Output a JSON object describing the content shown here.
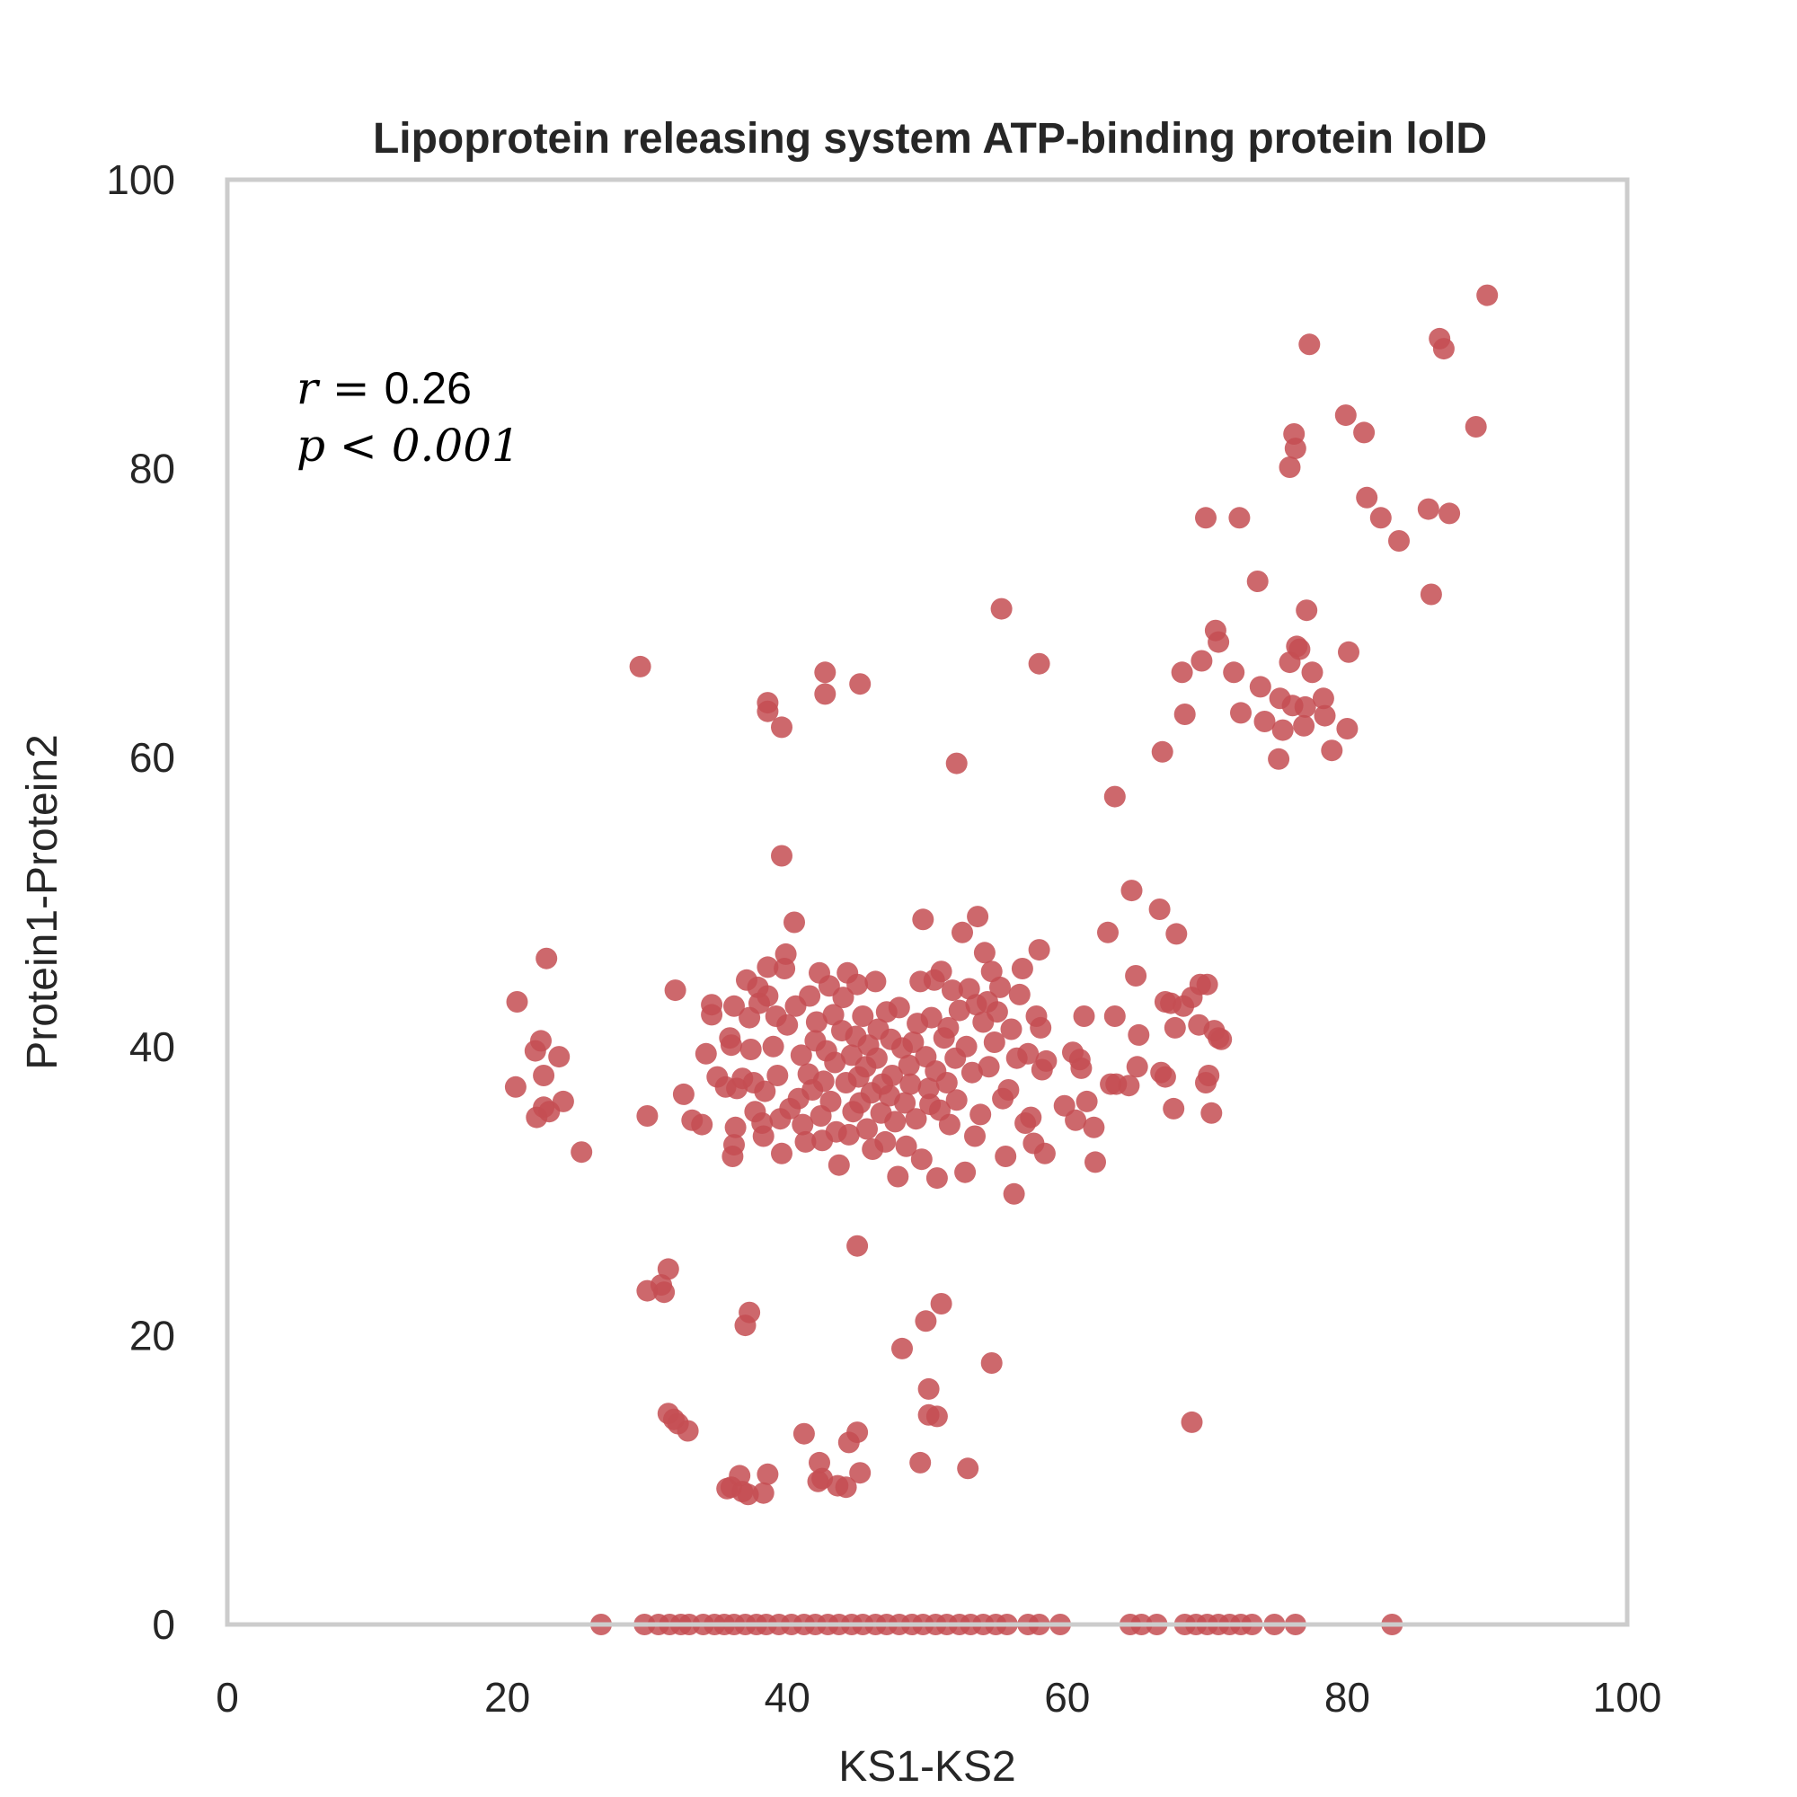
{
  "chart_data": {
    "type": "scatter",
    "title": "Lipoprotein releasing system ATP-binding protein lolD",
    "xlabel": "KS1-KS2",
    "ylabel": "Protein1-Protein2",
    "xlim": [
      0,
      100
    ],
    "ylim": [
      0,
      100
    ],
    "xticks": [
      "0",
      "20",
      "40",
      "60",
      "80",
      "100"
    ],
    "yticks": [
      "0",
      "20",
      "40",
      "60",
      "80",
      "100"
    ],
    "grid": false,
    "point_color": "#c44e52",
    "annotation": {
      "r_symbol": "r",
      "r_op": " = ",
      "r_value": "0.26",
      "p_symbol": "p",
      "p_op": " < ",
      "p_value": "0.001"
    },
    "points": [
      [
        20.7,
        43.1
      ],
      [
        20.6,
        37.2
      ],
      [
        22.1,
        35.1
      ],
      [
        22.0,
        39.7
      ],
      [
        22.4,
        40.4
      ],
      [
        22.6,
        35.8
      ],
      [
        22.6,
        38.0
      ],
      [
        23.0,
        35.5
      ],
      [
        23.7,
        39.3
      ],
      [
        24.0,
        36.2
      ],
      [
        22.8,
        46.1
      ],
      [
        25.3,
        32.7
      ],
      [
        29.5,
        66.3
      ],
      [
        30.0,
        35.2
      ],
      [
        32.0,
        43.9
      ],
      [
        32.6,
        36.7
      ],
      [
        33.2,
        34.9
      ],
      [
        33.9,
        34.6
      ],
      [
        34.2,
        39.5
      ],
      [
        34.6,
        42.9
      ],
      [
        34.6,
        42.2
      ],
      [
        35.0,
        37.9
      ],
      [
        35.6,
        37.2
      ],
      [
        35.9,
        40.6
      ],
      [
        36.0,
        40.1
      ],
      [
        36.2,
        42.8
      ],
      [
        36.4,
        37.1
      ],
      [
        36.3,
        34.4
      ],
      [
        36.2,
        33.2
      ],
      [
        36.1,
        32.4
      ],
      [
        36.8,
        37.8
      ],
      [
        37.1,
        44.6
      ],
      [
        37.3,
        42.0
      ],
      [
        37.4,
        39.8
      ],
      [
        37.6,
        37.5
      ],
      [
        37.7,
        35.5
      ],
      [
        37.9,
        44.1
      ],
      [
        38.0,
        43.0
      ],
      [
        38.2,
        34.7
      ],
      [
        38.3,
        33.8
      ],
      [
        38.4,
        36.9
      ],
      [
        38.6,
        45.5
      ],
      [
        38.6,
        43.5
      ],
      [
        39.0,
        40.0
      ],
      [
        39.2,
        42.1
      ],
      [
        39.3,
        38.0
      ],
      [
        39.5,
        35.0
      ],
      [
        39.6,
        32.6
      ],
      [
        39.8,
        45.4
      ],
      [
        39.9,
        46.4
      ],
      [
        40.0,
        41.5
      ],
      [
        40.2,
        35.7
      ],
      [
        40.5,
        48.6
      ],
      [
        40.6,
        42.8
      ],
      [
        40.8,
        36.4
      ],
      [
        41.0,
        39.4
      ],
      [
        41.1,
        34.6
      ],
      [
        41.3,
        33.4
      ],
      [
        41.5,
        38.1
      ],
      [
        41.6,
        43.5
      ],
      [
        41.8,
        37.0
      ],
      [
        42.0,
        40.4
      ],
      [
        42.1,
        41.7
      ],
      [
        42.3,
        45.1
      ],
      [
        42.4,
        35.2
      ],
      [
        42.5,
        33.5
      ],
      [
        42.6,
        37.6
      ],
      [
        42.8,
        39.7
      ],
      [
        43.0,
        44.2
      ],
      [
        43.1,
        36.2
      ],
      [
        43.3,
        42.2
      ],
      [
        43.4,
        38.9
      ],
      [
        43.5,
        34.1
      ],
      [
        43.7,
        31.8
      ],
      [
        43.9,
        41.1
      ],
      [
        44.0,
        43.4
      ],
      [
        44.2,
        37.5
      ],
      [
        44.3,
        45.1
      ],
      [
        44.4,
        33.9
      ],
      [
        44.6,
        39.4
      ],
      [
        44.7,
        35.5
      ],
      [
        44.9,
        40.7
      ],
      [
        45.0,
        44.3
      ],
      [
        45.1,
        37.9
      ],
      [
        45.2,
        36.1
      ],
      [
        45.4,
        42.1
      ],
      [
        45.6,
        38.6
      ],
      [
        45.7,
        34.3
      ],
      [
        45.8,
        40.1
      ],
      [
        46.0,
        36.8
      ],
      [
        46.1,
        32.9
      ],
      [
        46.3,
        44.5
      ],
      [
        46.4,
        39.2
      ],
      [
        46.5,
        41.2
      ],
      [
        46.7,
        35.4
      ],
      [
        46.8,
        37.4
      ],
      [
        47.0,
        33.4
      ],
      [
        47.1,
        42.4
      ],
      [
        47.3,
        36.6
      ],
      [
        47.4,
        40.5
      ],
      [
        47.5,
        38.0
      ],
      [
        47.7,
        34.8
      ],
      [
        47.9,
        31.0
      ],
      [
        48.0,
        42.7
      ],
      [
        48.2,
        39.9
      ],
      [
        48.4,
        36.1
      ],
      [
        48.5,
        33.1
      ],
      [
        48.7,
        38.7
      ],
      [
        48.8,
        37.4
      ],
      [
        49.0,
        40.3
      ],
      [
        49.2,
        35.0
      ],
      [
        49.3,
        41.6
      ],
      [
        49.5,
        44.5
      ],
      [
        49.6,
        32.2
      ],
      [
        49.7,
        48.8
      ],
      [
        49.9,
        39.3
      ],
      [
        50.1,
        37.1
      ],
      [
        50.2,
        36.0
      ],
      [
        50.3,
        42.0
      ],
      [
        50.5,
        44.6
      ],
      [
        50.6,
        38.3
      ],
      [
        50.7,
        30.9
      ],
      [
        50.9,
        35.6
      ],
      [
        51.0,
        45.2
      ],
      [
        51.2,
        40.6
      ],
      [
        51.4,
        37.5
      ],
      [
        51.5,
        41.3
      ],
      [
        51.6,
        34.6
      ],
      [
        51.8,
        43.9
      ],
      [
        52.0,
        39.2
      ],
      [
        52.1,
        36.3
      ],
      [
        52.3,
        42.5
      ],
      [
        52.5,
        47.9
      ],
      [
        52.7,
        31.3
      ],
      [
        52.8,
        40.0
      ],
      [
        53.0,
        44.0
      ],
      [
        53.2,
        38.2
      ],
      [
        53.4,
        33.8
      ],
      [
        53.5,
        42.9
      ],
      [
        53.6,
        49.0
      ],
      [
        53.8,
        35.3
      ],
      [
        54.0,
        41.7
      ],
      [
        54.1,
        46.5
      ],
      [
        54.3,
        43.1
      ],
      [
        54.4,
        38.6
      ],
      [
        54.6,
        45.2
      ],
      [
        54.8,
        40.3
      ],
      [
        55.0,
        42.4
      ],
      [
        55.2,
        44.1
      ],
      [
        55.4,
        36.4
      ],
      [
        55.6,
        32.4
      ],
      [
        55.8,
        37.0
      ],
      [
        56.0,
        41.2
      ],
      [
        56.2,
        29.8
      ],
      [
        56.4,
        39.2
      ],
      [
        56.6,
        43.6
      ],
      [
        56.8,
        45.4
      ],
      [
        57.0,
        34.7
      ],
      [
        57.2,
        39.5
      ],
      [
        57.4,
        35.1
      ],
      [
        57.6,
        33.3
      ],
      [
        57.8,
        42.1
      ],
      [
        58.0,
        46.7
      ],
      [
        58.1,
        41.3
      ],
      [
        58.2,
        38.4
      ],
      [
        58.4,
        32.6
      ],
      [
        58.5,
        39.0
      ],
      [
        59.8,
        35.9
      ],
      [
        60.4,
        39.6
      ],
      [
        60.6,
        34.9
      ],
      [
        60.9,
        39.1
      ],
      [
        61.0,
        38.5
      ],
      [
        61.2,
        42.1
      ],
      [
        61.4,
        36.2
      ],
      [
        61.9,
        34.4
      ],
      [
        62.0,
        32.0
      ],
      [
        62.9,
        47.9
      ],
      [
        63.1,
        37.4
      ],
      [
        63.4,
        42.1
      ],
      [
        63.5,
        37.4
      ],
      [
        64.4,
        37.3
      ],
      [
        64.6,
        50.8
      ],
      [
        64.9,
        44.9
      ],
      [
        65.0,
        38.6
      ],
      [
        65.1,
        40.8
      ],
      [
        66.7,
        38.2
      ],
      [
        66.6,
        49.5
      ],
      [
        67.0,
        37.9
      ],
      [
        67.0,
        43.1
      ],
      [
        67.4,
        43.0
      ],
      [
        67.6,
        35.7
      ],
      [
        67.7,
        41.3
      ],
      [
        67.8,
        47.8
      ],
      [
        68.3,
        42.8
      ],
      [
        68.9,
        43.4
      ],
      [
        69.4,
        41.5
      ],
      [
        69.5,
        44.3
      ],
      [
        69.9,
        37.5
      ],
      [
        70.0,
        44.3
      ],
      [
        70.1,
        38.0
      ],
      [
        70.3,
        35.4
      ],
      [
        70.5,
        41.1
      ],
      [
        70.8,
        40.6
      ],
      [
        71.0,
        40.5
      ],
      [
        39.6,
        53.2
      ],
      [
        38.6,
        63.8
      ],
      [
        38.6,
        63.2
      ],
      [
        39.6,
        62.1
      ],
      [
        42.7,
        65.9
      ],
      [
        42.7,
        64.4
      ],
      [
        45.2,
        65.1
      ],
      [
        52.1,
        59.6
      ],
      [
        55.3,
        70.3
      ],
      [
        58.0,
        66.5
      ],
      [
        63.4,
        57.3
      ],
      [
        30.0,
        23.1
      ],
      [
        31.0,
        23.5
      ],
      [
        31.2,
        23.0
      ],
      [
        31.5,
        24.6
      ],
      [
        37.0,
        20.7
      ],
      [
        37.3,
        21.6
      ],
      [
        45.0,
        26.2
      ],
      [
        48.2,
        19.1
      ],
      [
        49.9,
        21.0
      ],
      [
        51.0,
        22.2
      ],
      [
        54.6,
        18.1
      ],
      [
        31.5,
        14.6
      ],
      [
        31.9,
        14.2
      ],
      [
        32.2,
        13.9
      ],
      [
        32.9,
        13.4
      ],
      [
        35.7,
        9.4
      ],
      [
        36.0,
        9.5
      ],
      [
        36.6,
        10.3
      ],
      [
        36.8,
        9.2
      ],
      [
        37.2,
        9.0
      ],
      [
        38.3,
        9.1
      ],
      [
        38.6,
        10.4
      ],
      [
        41.2,
        13.2
      ],
      [
        42.2,
        9.9
      ],
      [
        42.3,
        11.2
      ],
      [
        42.5,
        10.1
      ],
      [
        43.6,
        9.6
      ],
      [
        44.2,
        9.5
      ],
      [
        44.4,
        12.6
      ],
      [
        45.0,
        13.3
      ],
      [
        45.2,
        10.5
      ],
      [
        49.5,
        11.2
      ],
      [
        50.1,
        16.3
      ],
      [
        50.1,
        14.5
      ],
      [
        50.7,
        14.4
      ],
      [
        52.9,
        10.8
      ],
      [
        68.9,
        14.0
      ],
      [
        26.7,
        0
      ],
      [
        29.8,
        0
      ],
      [
        30.8,
        0
      ],
      [
        31.6,
        0
      ],
      [
        32.4,
        0
      ],
      [
        33.0,
        0
      ],
      [
        34.0,
        0
      ],
      [
        34.8,
        0
      ],
      [
        35.5,
        0
      ],
      [
        36.2,
        0
      ],
      [
        37.0,
        0
      ],
      [
        37.8,
        0
      ],
      [
        38.5,
        0
      ],
      [
        39.4,
        0
      ],
      [
        40.3,
        0
      ],
      [
        41.2,
        0
      ],
      [
        42.0,
        0
      ],
      [
        42.9,
        0
      ],
      [
        43.7,
        0
      ],
      [
        44.6,
        0
      ],
      [
        45.4,
        0
      ],
      [
        46.3,
        0
      ],
      [
        47.1,
        0
      ],
      [
        48.0,
        0
      ],
      [
        48.9,
        0
      ],
      [
        49.7,
        0
      ],
      [
        50.6,
        0
      ],
      [
        51.4,
        0
      ],
      [
        52.3,
        0
      ],
      [
        53.1,
        0
      ],
      [
        54.0,
        0
      ],
      [
        54.9,
        0
      ],
      [
        55.7,
        0
      ],
      [
        57.2,
        0
      ],
      [
        58.0,
        0
      ],
      [
        59.5,
        0
      ],
      [
        64.5,
        0
      ],
      [
        65.3,
        0
      ],
      [
        66.4,
        0
      ],
      [
        68.4,
        0
      ],
      [
        69.2,
        0
      ],
      [
        70.0,
        0
      ],
      [
        70.8,
        0
      ],
      [
        71.6,
        0
      ],
      [
        72.4,
        0
      ],
      [
        73.2,
        0
      ],
      [
        74.8,
        0
      ],
      [
        76.3,
        0
      ],
      [
        83.2,
        0
      ],
      [
        66.8,
        60.4
      ],
      [
        68.2,
        65.9
      ],
      [
        68.4,
        63.0
      ],
      [
        69.6,
        66.7
      ],
      [
        69.9,
        76.6
      ],
      [
        70.6,
        68.8
      ],
      [
        70.8,
        68.0
      ],
      [
        71.9,
        65.9
      ],
      [
        72.4,
        63.1
      ],
      [
        72.3,
        76.6
      ],
      [
        73.6,
        72.2
      ],
      [
        73.8,
        64.9
      ],
      [
        74.1,
        62.5
      ],
      [
        75.1,
        59.9
      ],
      [
        75.2,
        64.1
      ],
      [
        75.4,
        61.9
      ],
      [
        75.9,
        80.1
      ],
      [
        75.9,
        66.6
      ],
      [
        76.1,
        63.6
      ],
      [
        76.2,
        82.4
      ],
      [
        76.3,
        81.4
      ],
      [
        76.4,
        67.7
      ],
      [
        76.6,
        67.5
      ],
      [
        76.9,
        62.2
      ],
      [
        77.0,
        63.5
      ],
      [
        77.1,
        70.2
      ],
      [
        77.3,
        88.6
      ],
      [
        77.5,
        65.9
      ],
      [
        78.3,
        64.1
      ],
      [
        78.4,
        62.9
      ],
      [
        78.9,
        60.5
      ],
      [
        79.9,
        83.7
      ],
      [
        80.0,
        62.0
      ],
      [
        80.1,
        67.3
      ],
      [
        81.2,
        82.5
      ],
      [
        81.4,
        78.0
      ],
      [
        82.4,
        76.6
      ],
      [
        83.7,
        75.0
      ],
      [
        85.8,
        77.2
      ],
      [
        86.0,
        71.3
      ],
      [
        86.6,
        89.0
      ],
      [
        86.9,
        88.3
      ],
      [
        87.3,
        76.9
      ],
      [
        89.2,
        82.9
      ],
      [
        90.0,
        92.0
      ]
    ]
  }
}
